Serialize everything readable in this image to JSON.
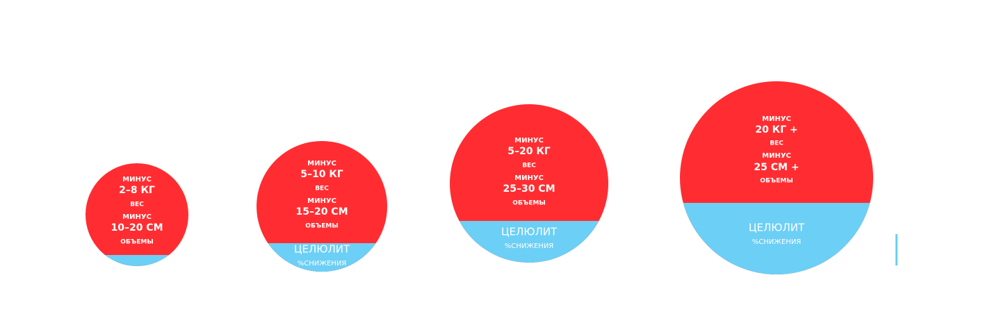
{
  "circles": [
    {
      "lines": [
        "МИНУС",
        "2–8 КГ",
        "ВЕС",
        "МИНУС",
        "10–20 СМ",
        "ОБЪЕМЫ"
      ]
    },
    {
      "lines": [
        "МИНУС",
        "5–10 КГ",
        "ВЕС",
        "МИНУС",
        "15–20 СМ",
        "ОБЪЕМЫ"
      ],
      "cellulite": "ЦЕЛЮЛИТ",
      "cellulite_note": "%СНИЖЕНИЯ"
    },
    {
      "lines": [
        "МИНУС",
        "5–20 КГ",
        "ВЕС",
        "МИНУС",
        "25–30 СМ",
        "ОБЪЕМЫ"
      ],
      "cellulite": "ЦЕЛЮЛИТ",
      "cellulite_note": "%СНИЖЕНИЯ"
    },
    {
      "lines": [
        "МИНУС",
        "20 КГ +",
        "ВЕС",
        "МИНУС",
        "25 СМ +",
        "ОБЪЕМЫ"
      ],
      "cellulite": "ЦЕЛЮЛИТ",
      "cellulite_note": "%СНИЖЕНИЯ"
    }
  ]
}
